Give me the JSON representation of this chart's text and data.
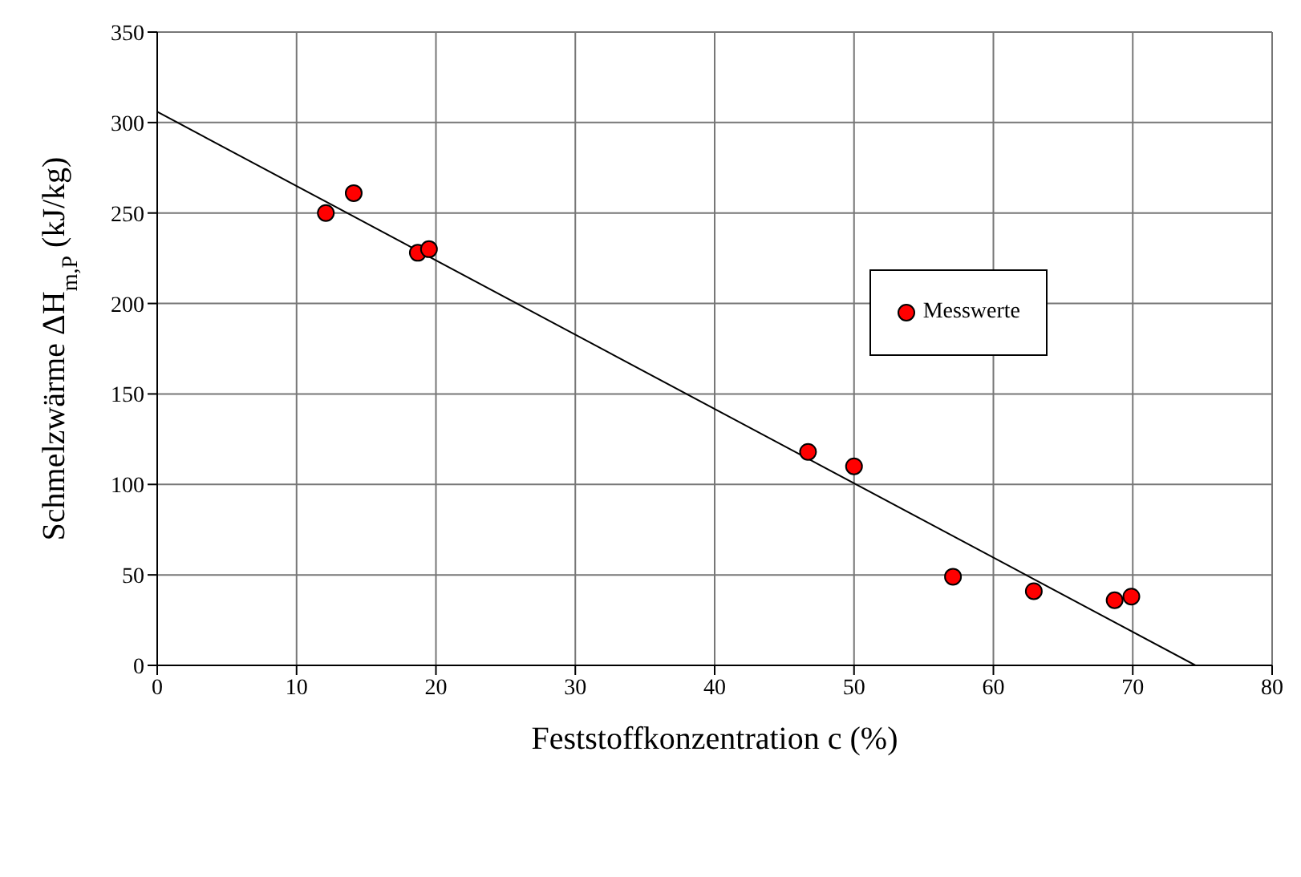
{
  "chart_data": {
    "type": "scatter",
    "xlabel": "Feststoffkonzentration c (%)",
    "ylabel": "Schmelzwärme ΔH$_{m,P}$ (kJ/kg)",
    "xlim": [
      0,
      80
    ],
    "xticks": [
      0,
      10,
      20,
      30,
      40,
      50,
      60,
      70,
      80
    ],
    "ylim": [
      0,
      350
    ],
    "yticks": [
      0,
      50,
      100,
      150,
      200,
      250,
      300,
      350
    ],
    "grid": true,
    "legend": "right",
    "series": [
      {
        "name": "Messwerte",
        "color": "#ff0000",
        "marker": "circle",
        "x": [
          12.1,
          14.1,
          18.7,
          19.5,
          46.7,
          50,
          57.1,
          62.9,
          68.7,
          69.9
        ],
        "values": [
          250,
          261,
          228,
          230,
          118,
          110,
          49,
          41,
          36,
          38
        ]
      },
      {
        "type": "line",
        "color": "#000000",
        "marker": "none",
        "line_style": "solid",
        "x": [
          0,
          74.5
        ],
        "values": [
          306,
          0
        ]
      }
    ]
  }
}
